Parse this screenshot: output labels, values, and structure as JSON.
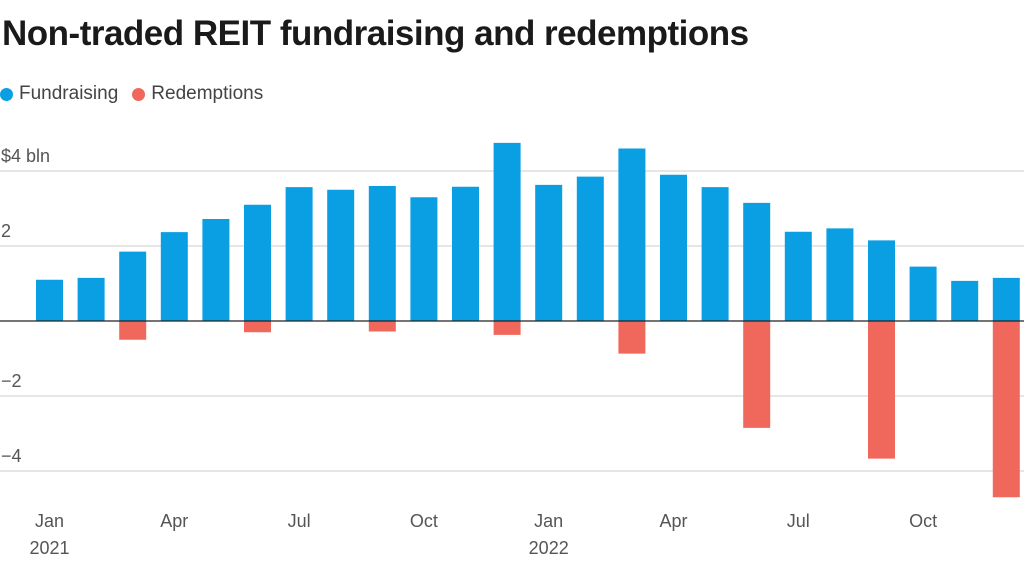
{
  "chart_data": {
    "type": "bar",
    "title": "Non-traded REIT fundraising and redemptions",
    "xlabel": "",
    "ylabel": "",
    "ylim": [
      -4.7,
      4.8
    ],
    "y_ticks": [
      {
        "value": 4,
        "label": "$4 bln"
      },
      {
        "value": 2,
        "label": "2"
      },
      {
        "value": 0,
        "label": ""
      },
      {
        "value": -2,
        "label": "−2"
      },
      {
        "value": -4,
        "label": "−4"
      }
    ],
    "categories": [
      "Jan 2021",
      "Feb 2021",
      "Mar 2021",
      "Apr 2021",
      "May 2021",
      "Jun 2021",
      "Jul 2021",
      "Aug 2021",
      "Sep 2021",
      "Oct 2021",
      "Nov 2021",
      "Dec 2021",
      "Jan 2022",
      "Feb 2022",
      "Mar 2022",
      "Apr 2022",
      "May 2022",
      "Jun 2022",
      "Jul 2022",
      "Aug 2022",
      "Sep 2022",
      "Oct 2022",
      "Nov 2022",
      "Dec 2022"
    ],
    "x_ticks": [
      {
        "index": 0,
        "month": "Jan",
        "year": "2021"
      },
      {
        "index": 3,
        "month": "Apr",
        "year": ""
      },
      {
        "index": 6,
        "month": "Jul",
        "year": ""
      },
      {
        "index": 9,
        "month": "Oct",
        "year": ""
      },
      {
        "index": 12,
        "month": "Jan",
        "year": "2022"
      },
      {
        "index": 15,
        "month": "Apr",
        "year": ""
      },
      {
        "index": 18,
        "month": "Jul",
        "year": ""
      },
      {
        "index": 21,
        "month": "Oct",
        "year": ""
      }
    ],
    "series": [
      {
        "name": "Fundraising",
        "color": "#0a9fe3",
        "values": [
          1.1,
          1.15,
          1.85,
          2.37,
          2.72,
          3.1,
          3.57,
          3.5,
          3.6,
          3.3,
          3.58,
          4.75,
          3.63,
          3.85,
          4.6,
          3.9,
          3.57,
          3.15,
          2.38,
          2.47,
          2.15,
          1.45,
          1.07,
          1.15
        ]
      },
      {
        "name": "Redemptions",
        "color": "#f0685c",
        "values": [
          0,
          0,
          -0.5,
          0,
          0,
          -0.3,
          0,
          0,
          -0.28,
          0,
          0,
          -0.37,
          0,
          0,
          -0.87,
          0,
          0,
          -2.85,
          0,
          0,
          -3.67,
          0,
          0,
          -4.7
        ]
      }
    ],
    "legend": "top-left",
    "grid": true
  }
}
